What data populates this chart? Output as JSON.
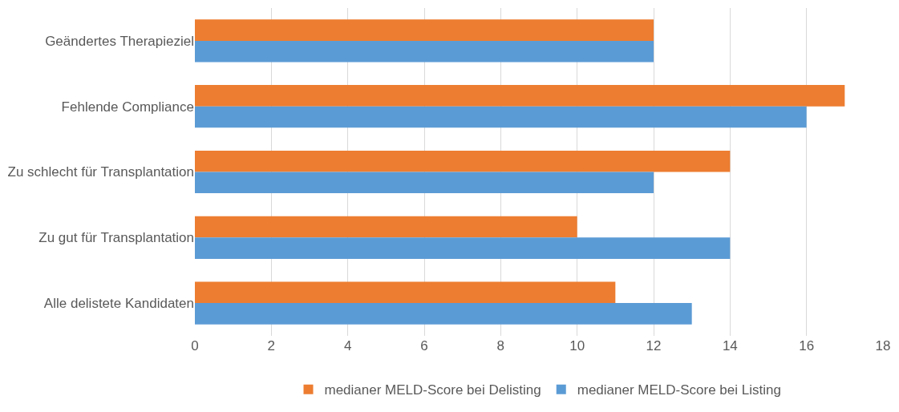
{
  "chart_data": {
    "type": "bar",
    "orientation": "horizontal",
    "categories": [
      "Geändertes Therapieziel",
      "Fehlende Compliance",
      "Zu schlecht für Transplantation",
      "Zu gut für Transplantation",
      "Alle delistete Kandidaten"
    ],
    "series": [
      {
        "name": "medianer MELD-Score bei Delisting",
        "color": "#ed7d31",
        "values": [
          12,
          17,
          14,
          10,
          11
        ]
      },
      {
        "name": "medianer MELD-Score bei Listing",
        "color": "#5b9bd5",
        "values": [
          12,
          16,
          12,
          14,
          13
        ]
      }
    ],
    "xlim": [
      0,
      18
    ],
    "xticks": [
      0,
      2,
      4,
      6,
      8,
      10,
      12,
      14,
      16,
      18
    ],
    "grid": "x",
    "legend": "bottom"
  }
}
